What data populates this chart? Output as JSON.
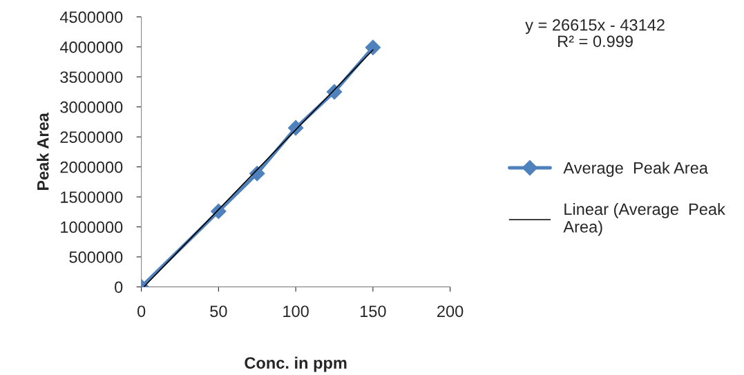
{
  "chart_data": {
    "type": "line",
    "xlabel": "Conc. in ppm",
    "ylabel": "Peak Area",
    "x": [
      0,
      50,
      75,
      100,
      125,
      150
    ],
    "series": [
      {
        "name": "Average  Peak Area",
        "color": "#4f81bd",
        "marker": "diamond",
        "values": [
          0,
          1260000,
          1890000,
          2650000,
          3250000,
          3990000
        ]
      },
      {
        "name": "Linear (Average  Peak Area)",
        "type": "line",
        "color": "#000000",
        "marker": "none",
        "x": [
          2,
          150
        ],
        "values": [
          10000,
          3950000
        ]
      }
    ],
    "xlim": [
      0,
      200
    ],
    "xticks": [
      0,
      50,
      100,
      150,
      200
    ],
    "ylim": [
      0,
      4500000
    ],
    "yticks": [
      0,
      500000,
      1000000,
      1500000,
      2000000,
      2500000,
      3000000,
      3500000,
      4000000,
      4500000
    ],
    "annotations": [
      "y = 26615x - 43142\nR² = 0.999"
    ],
    "grid": false,
    "legend": "right"
  }
}
